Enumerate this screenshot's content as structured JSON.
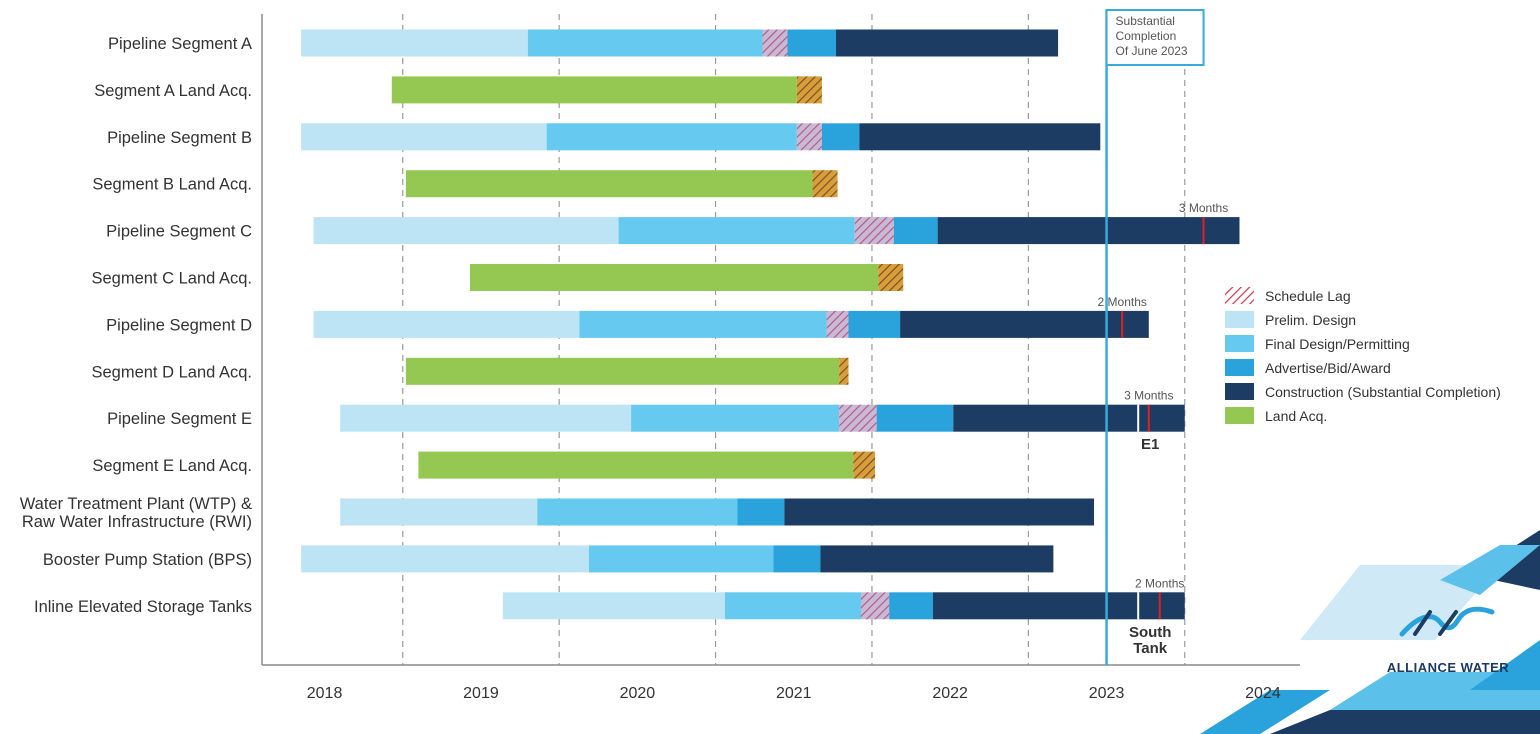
{
  "chart_data": {
    "type": "gantt",
    "x_ticks": [
      "2018",
      "2019",
      "2020",
      "2021",
      "2022",
      "2023",
      "2024"
    ],
    "xlim": [
      2017.6,
      2024.3
    ],
    "colors": {
      "Prelim. Design": "#bde4f5",
      "Final Design/Permitting": "#66c9f0",
      "Advertise/Bid/Award": "#2aa3dd",
      "Construction (Substantial Completion)": "#1c3c64",
      "Land Acq.": "#94c853",
      "lag_stroke_design": "#b25d7c",
      "lag_stroke_land": "#8a4a20",
      "lag_bg_design": "#c9b8d8",
      "lag_bg_land": "#d4a03c",
      "delay_marker": "#e02020",
      "completion_line": "#3aabd8"
    },
    "legend": [
      {
        "key": "Schedule Lag",
        "label": "Schedule Lag"
      },
      {
        "key": "Prelim. Design",
        "label": "Prelim. Design"
      },
      {
        "key": "Final Design/Permitting",
        "label": "Final Design/Permitting"
      },
      {
        "key": "Advertise/Bid/Award",
        "label": "Advertise/Bid/Award"
      },
      {
        "key": "Construction (Substantial Completion)",
        "label": "Construction (Substantial Completion)"
      },
      {
        "key": "Land Acq.",
        "label": "Land Acq."
      }
    ],
    "completion_line": {
      "x": 2023.0,
      "label_lines": [
        "Substantial",
        "Completion",
        "Of June 2023"
      ]
    },
    "rows": [
      {
        "label": [
          "Pipeline Segment A"
        ],
        "segments": [
          {
            "phase": "Prelim. Design",
            "start": 2017.85,
            "end": 2019.3
          },
          {
            "phase": "Final Design/Permitting",
            "start": 2019.3,
            "end": 2020.8
          },
          {
            "phase": "Schedule Lag",
            "start": 2020.8,
            "end": 2020.96
          },
          {
            "phase": "Advertise/Bid/Award",
            "start": 2020.96,
            "end": 2021.27
          },
          {
            "phase": "Construction (Substantial Completion)",
            "start": 2021.27,
            "end": 2022.69
          }
        ]
      },
      {
        "label": [
          "Segment A Land Acq."
        ],
        "segments": [
          {
            "phase": "Land Acq.",
            "start": 2018.43,
            "end": 2021.02
          },
          {
            "phase": "Schedule Lag",
            "start": 2021.02,
            "end": 2021.18
          }
        ]
      },
      {
        "label": [
          "Pipeline Segment B"
        ],
        "segments": [
          {
            "phase": "Prelim. Design",
            "start": 2017.85,
            "end": 2019.42
          },
          {
            "phase": "Final Design/Permitting",
            "start": 2019.42,
            "end": 2021.02
          },
          {
            "phase": "Schedule Lag",
            "start": 2021.02,
            "end": 2021.18
          },
          {
            "phase": "Advertise/Bid/Award",
            "start": 2021.18,
            "end": 2021.42
          },
          {
            "phase": "Construction (Substantial Completion)",
            "start": 2021.42,
            "end": 2022.96
          }
        ]
      },
      {
        "label": [
          "Segment B Land Acq."
        ],
        "segments": [
          {
            "phase": "Land Acq.",
            "start": 2018.52,
            "end": 2021.12
          },
          {
            "phase": "Schedule Lag",
            "start": 2021.12,
            "end": 2021.28
          }
        ]
      },
      {
        "label": [
          "Pipeline Segment C"
        ],
        "segments": [
          {
            "phase": "Prelim. Design",
            "start": 2017.93,
            "end": 2019.88
          },
          {
            "phase": "Final Design/Permitting",
            "start": 2019.88,
            "end": 2021.39
          },
          {
            "phase": "Schedule Lag",
            "start": 2021.39,
            "end": 2021.64
          },
          {
            "phase": "Advertise/Bid/Award",
            "start": 2021.64,
            "end": 2021.92
          },
          {
            "phase": "Construction (Substantial Completion)",
            "start": 2021.92,
            "end": 2023.85
          }
        ],
        "delay": {
          "x": 2023.62,
          "label": "3 Months"
        }
      },
      {
        "label": [
          "Segment C Land Acq."
        ],
        "segments": [
          {
            "phase": "Land Acq.",
            "start": 2018.93,
            "end": 2021.54
          },
          {
            "phase": "Schedule Lag",
            "start": 2021.54,
            "end": 2021.7
          }
        ]
      },
      {
        "label": [
          "Pipeline Segment D"
        ],
        "segments": [
          {
            "phase": "Prelim. Design",
            "start": 2017.93,
            "end": 2019.63
          },
          {
            "phase": "Final Design/Permitting",
            "start": 2019.63,
            "end": 2021.21
          },
          {
            "phase": "Schedule Lag",
            "start": 2021.21,
            "end": 2021.35
          },
          {
            "phase": "Advertise/Bid/Award",
            "start": 2021.35,
            "end": 2021.68
          },
          {
            "phase": "Construction (Substantial Completion)",
            "start": 2021.68,
            "end": 2023.27
          }
        ],
        "delay": {
          "x": 2023.1,
          "label": "2 Months"
        }
      },
      {
        "label": [
          "Segment D Land Acq."
        ],
        "segments": [
          {
            "phase": "Land Acq.",
            "start": 2018.52,
            "end": 2021.29
          },
          {
            "phase": "Schedule Lag",
            "start": 2021.29,
            "end": 2021.35
          }
        ]
      },
      {
        "label": [
          "Pipeline Segment E"
        ],
        "segments": [
          {
            "phase": "Prelim. Design",
            "start": 2018.1,
            "end": 2019.96
          },
          {
            "phase": "Final Design/Permitting",
            "start": 2019.96,
            "end": 2021.29
          },
          {
            "phase": "Schedule Lag",
            "start": 2021.29,
            "end": 2021.53
          },
          {
            "phase": "Advertise/Bid/Award",
            "start": 2021.53,
            "end": 2022.02
          },
          {
            "phase": "Construction (Substantial Completion)",
            "start": 2022.02,
            "end": 2023.5
          }
        ],
        "delay": {
          "x": 2023.27,
          "label": "3 Months"
        },
        "milestone": {
          "x": 2023.1,
          "label": [
            "E1"
          ]
        }
      },
      {
        "label": [
          "Segment E Land Acq."
        ],
        "segments": [
          {
            "phase": "Land Acq.",
            "start": 2018.6,
            "end": 2021.38
          },
          {
            "phase": "Schedule Lag",
            "start": 2021.38,
            "end": 2021.52
          }
        ]
      },
      {
        "label": [
          "Water Treatment Plant (WTP) &",
          "Raw Water Infrastructure (RWI)"
        ],
        "segments": [
          {
            "phase": "Prelim. Design",
            "start": 2018.1,
            "end": 2019.36
          },
          {
            "phase": "Final Design/Permitting",
            "start": 2019.36,
            "end": 2020.64
          },
          {
            "phase": "Advertise/Bid/Award",
            "start": 2020.64,
            "end": 2020.94
          },
          {
            "phase": "Construction (Substantial Completion)",
            "start": 2020.94,
            "end": 2022.92
          }
        ]
      },
      {
        "label": [
          "Booster Pump Station (BPS)"
        ],
        "segments": [
          {
            "phase": "Prelim. Design",
            "start": 2017.85,
            "end": 2019.69
          },
          {
            "phase": "Final Design/Permitting",
            "start": 2019.69,
            "end": 2020.87
          },
          {
            "phase": "Advertise/Bid/Award",
            "start": 2020.87,
            "end": 2021.17
          },
          {
            "phase": "Construction (Substantial Completion)",
            "start": 2021.17,
            "end": 2022.66
          }
        ]
      },
      {
        "label": [
          "Inline Elevated Storage Tanks"
        ],
        "segments": [
          {
            "phase": "Prelim. Design",
            "start": 2019.14,
            "end": 2020.56
          },
          {
            "phase": "Final Design/Permitting",
            "start": 2020.56,
            "end": 2021.43
          },
          {
            "phase": "Schedule Lag",
            "start": 2021.43,
            "end": 2021.61
          },
          {
            "phase": "Advertise/Bid/Award",
            "start": 2021.61,
            "end": 2021.89
          },
          {
            "phase": "Construction (Substantial Completion)",
            "start": 2021.89,
            "end": 2023.5
          }
        ],
        "delay": {
          "x": 2023.34,
          "label": "2 Months"
        },
        "milestone": {
          "x": 2023.1,
          "label": [
            "South",
            "Tank"
          ]
        }
      }
    ]
  },
  "logo": {
    "text": "ALLIANCE WATER"
  }
}
